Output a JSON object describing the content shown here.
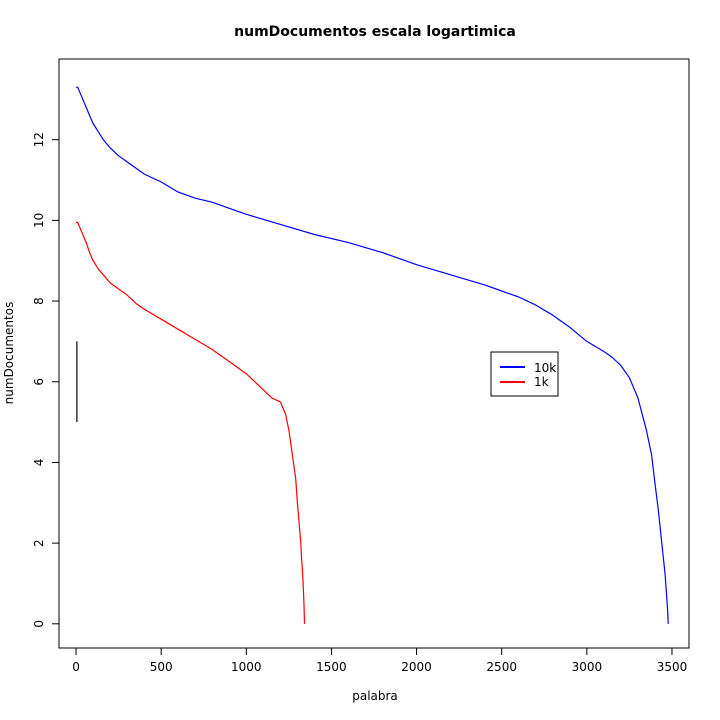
{
  "chart_data": {
    "type": "line",
    "title": "numDocumentos escala logartimica",
    "xlabel": "palabra",
    "ylabel": "numDocumentos",
    "xlim": [
      -100,
      3600
    ],
    "ylim": [
      -0.6,
      14.0
    ],
    "x_ticks": [
      0,
      500,
      1000,
      1500,
      2000,
      2500,
      3000,
      3500
    ],
    "y_ticks": [
      0,
      2,
      4,
      6,
      8,
      10,
      12
    ],
    "grid": false,
    "legend_position": "right",
    "series": [
      {
        "name": "10k",
        "color": "#0000ff",
        "x": [
          0,
          10,
          20,
          40,
          60,
          80,
          100,
          130,
          160,
          200,
          250,
          300,
          350,
          400,
          500,
          600,
          700,
          800,
          900,
          1000,
          1200,
          1400,
          1600,
          1800,
          2000,
          2200,
          2400,
          2500,
          2600,
          2700,
          2800,
          2900,
          3000,
          3100,
          3150,
          3200,
          3250,
          3300,
          3350,
          3380,
          3400,
          3420,
          3430,
          3440,
          3450,
          3460,
          3465,
          3470,
          3475,
          3478
        ],
        "y": [
          13.3,
          13.3,
          13.2,
          13.0,
          12.8,
          12.6,
          12.4,
          12.2,
          12.0,
          11.8,
          11.6,
          11.45,
          11.3,
          11.15,
          10.95,
          10.7,
          10.55,
          10.45,
          10.3,
          10.15,
          9.9,
          9.65,
          9.45,
          9.2,
          8.9,
          8.65,
          8.4,
          8.25,
          8.1,
          7.9,
          7.65,
          7.35,
          7.0,
          6.75,
          6.6,
          6.4,
          6.1,
          5.6,
          4.8,
          4.2,
          3.5,
          2.8,
          2.4,
          2.0,
          1.6,
          1.2,
          0.9,
          0.6,
          0.3,
          0.0
        ]
      },
      {
        "name": "1k",
        "color": "#ff0000",
        "x": [
          0,
          10,
          20,
          40,
          60,
          80,
          100,
          130,
          160,
          200,
          250,
          300,
          350,
          400,
          500,
          600,
          700,
          800,
          900,
          1000,
          1100,
          1150,
          1200,
          1230,
          1250,
          1270,
          1290,
          1300,
          1310,
          1320,
          1325,
          1330,
          1335,
          1338,
          1340,
          1342
        ],
        "y": [
          9.95,
          9.95,
          9.85,
          9.65,
          9.45,
          9.2,
          9.0,
          8.8,
          8.65,
          8.45,
          8.3,
          8.15,
          7.95,
          7.8,
          7.55,
          7.3,
          7.05,
          6.8,
          6.5,
          6.2,
          5.8,
          5.6,
          5.5,
          5.2,
          4.8,
          4.2,
          3.6,
          3.0,
          2.5,
          2.0,
          1.6,
          1.3,
          0.9,
          0.6,
          0.3,
          0.0
        ]
      },
      {
        "name": "",
        "color": "#000000",
        "x": [
          5,
          5
        ],
        "y": [
          5.0,
          7.0
        ]
      }
    ]
  }
}
